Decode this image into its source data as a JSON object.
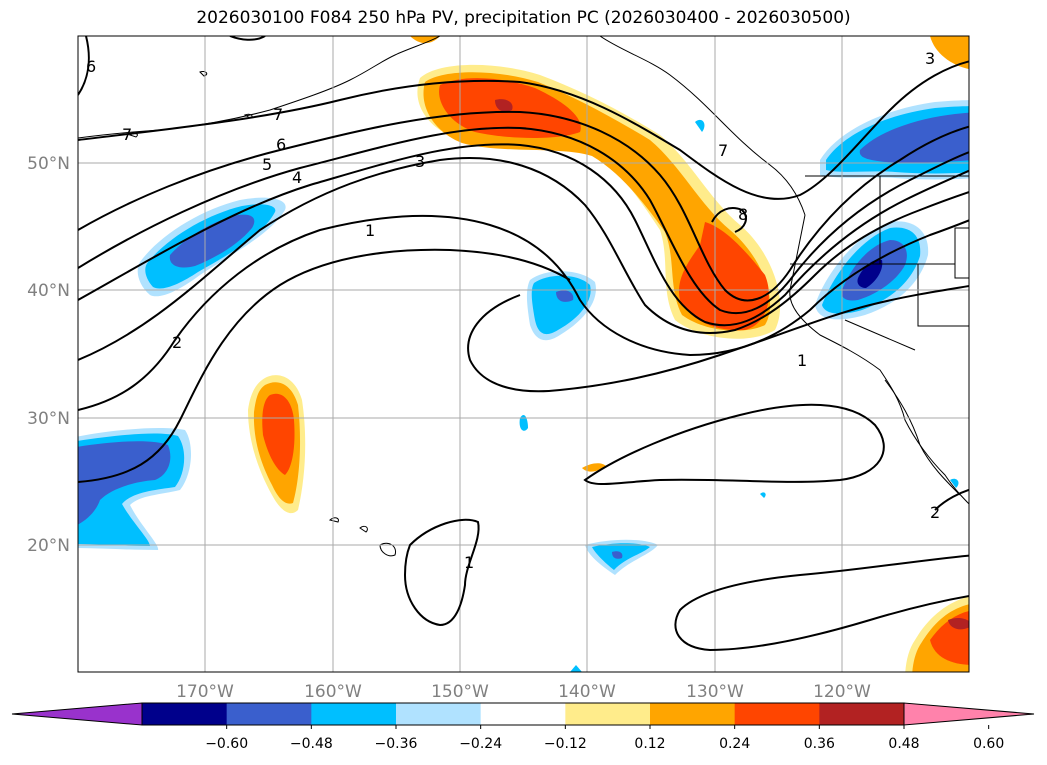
{
  "title": "2026030100 F084 250 hPa PV, precipitation PC (2026030400 - 2026030500)",
  "lon_labels": [
    "170°W",
    "160°W",
    "150°W",
    "140°W",
    "130°W",
    "120°W"
  ],
  "lat_labels": [
    "50°N",
    "40°N",
    "30°N",
    "20°N"
  ],
  "colorbar": {
    "colors": [
      "#9932cc",
      "#00008b",
      "#3a5fcd",
      "#00bfff",
      "#b0e2ff",
      "#ffffff",
      "#ffec8b",
      "#ffa500",
      "#ff4500",
      "#b22222",
      "#ff82ab"
    ],
    "labels": [
      "−0.60",
      "−0.48",
      "−0.36",
      "−0.24",
      "−0.12",
      "0.12",
      "0.24",
      "0.36",
      "0.48",
      "0.60"
    ]
  },
  "contour_labels": [
    "7",
    "6",
    "5",
    "4",
    "3",
    "1",
    "2",
    "7",
    "8",
    "1",
    "1",
    "3",
    "6",
    "7",
    "2"
  ]
}
